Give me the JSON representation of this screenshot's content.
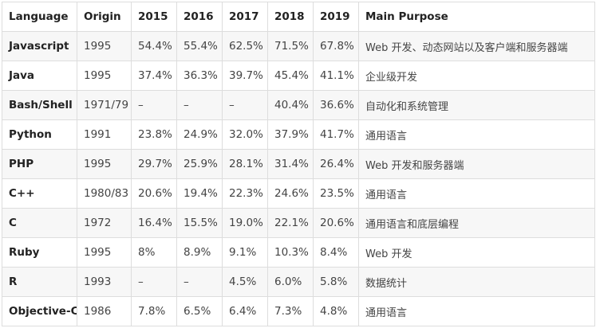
{
  "table": {
    "headers": [
      "Language",
      "Origin",
      "2015",
      "2016",
      "2017",
      "2018",
      "2019",
      "Main Purpose"
    ],
    "rows": [
      [
        "Javascript",
        "1995",
        "54.4%",
        "55.4%",
        "62.5%",
        "71.5%",
        "67.8%",
        "Web 开发、动态网站以及客户端和服务器端"
      ],
      [
        "Java",
        "1995",
        "37.4%",
        "36.3%",
        "39.7%",
        "45.4%",
        "41.1%",
        "企业级开发"
      ],
      [
        "Bash/Shell",
        "1971/79",
        "–",
        "–",
        "–",
        "40.4%",
        "36.6%",
        "自动化和系统管理"
      ],
      [
        "Python",
        "1991",
        "23.8%",
        "24.9%",
        "32.0%",
        "37.9%",
        "41.7%",
        "通用语言"
      ],
      [
        "PHP",
        "1995",
        "29.7%",
        "25.9%",
        "28.1%",
        "31.4%",
        "26.4%",
        "Web 开发和服务器端"
      ],
      [
        "C++",
        "1980/83",
        "20.6%",
        "19.4%",
        "22.3%",
        "24.6%",
        "23.5%",
        "通用语言"
      ],
      [
        "C",
        "1972",
        "16.4%",
        "15.5%",
        "19.0%",
        "22.1%",
        "20.6%",
        "通用语言和底层编程"
      ],
      [
        "Ruby",
        "1995",
        "8%",
        "8.9%",
        "9.1%",
        "10.3%",
        "8.4%",
        "Web 开发"
      ],
      [
        "R",
        "1993",
        "–",
        "–",
        "4.5%",
        "6.0%",
        "5.8%",
        "数据统计"
      ],
      [
        "Objective-C",
        "1986",
        "7.8%",
        "6.5%",
        "6.4%",
        "7.3%",
        "4.8%",
        "通用语言"
      ]
    ]
  }
}
